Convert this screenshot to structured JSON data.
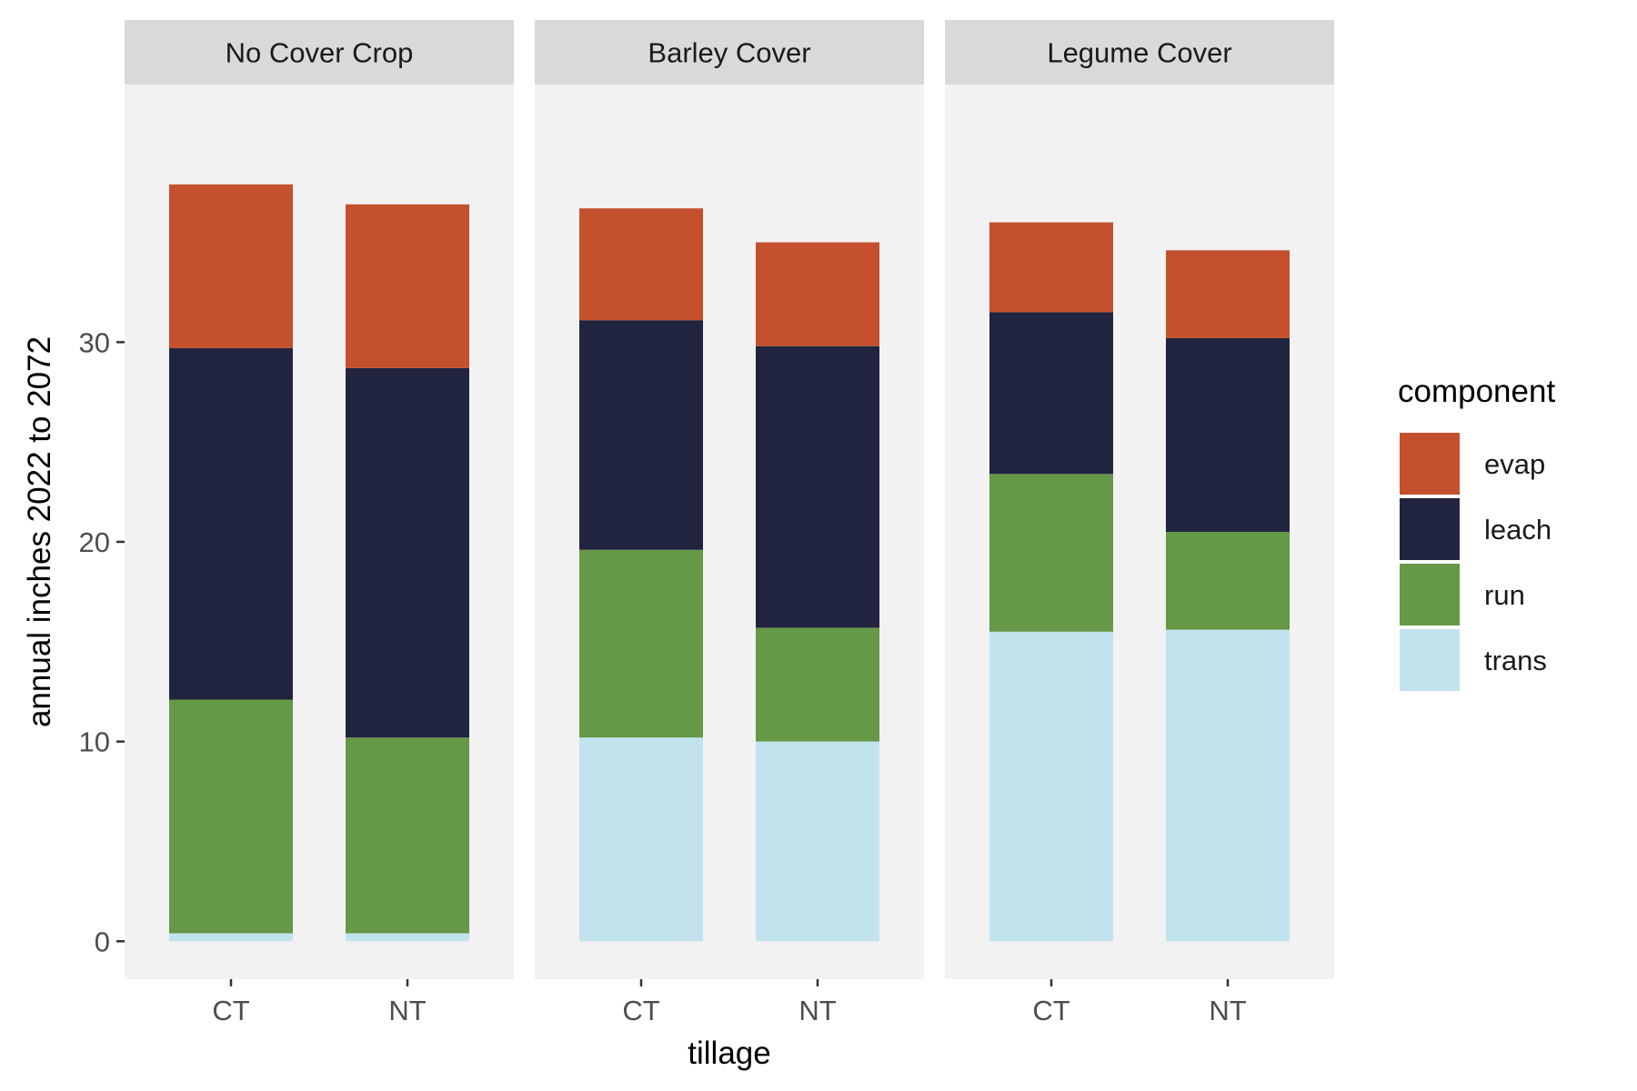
{
  "chart_data": {
    "type": "bar",
    "stacked": true,
    "faceted": true,
    "xlabel": "tillage",
    "ylabel": "annual inches 2022 to 2072",
    "ylim": [
      -1.9,
      42.9
    ],
    "yticks": [
      0,
      10,
      20,
      30
    ],
    "legend": {
      "title": "component",
      "position": "right",
      "entries": [
        "evap",
        "leach",
        "run",
        "trans"
      ]
    },
    "colors": {
      "evap": "#C4502D",
      "leach": "#20243E",
      "run": "#659847",
      "trans": "#C2E3EE",
      "panel_bg": "#F2F2F2",
      "strip_bg": "#D9D9D9"
    },
    "stack_order_bottom_to_top": [
      "trans",
      "run",
      "leach",
      "evap"
    ],
    "categories": [
      "CT",
      "NT"
    ],
    "facets": [
      {
        "label": "No Cover Crop",
        "bars": [
          {
            "category": "CT",
            "trans": 0.4,
            "run": 11.7,
            "leach": 17.6,
            "evap": 8.2
          },
          {
            "category": "NT",
            "trans": 0.4,
            "run": 9.8,
            "leach": 18.5,
            "evap": 8.2
          }
        ]
      },
      {
        "label": "Barley Cover",
        "bars": [
          {
            "category": "CT",
            "trans": 10.2,
            "run": 9.4,
            "leach": 11.5,
            "evap": 5.6
          },
          {
            "category": "NT",
            "trans": 10.0,
            "run": 5.7,
            "leach": 14.1,
            "evap": 5.2
          }
        ]
      },
      {
        "label": "Legume Cover",
        "bars": [
          {
            "category": "CT",
            "trans": 15.5,
            "run": 7.9,
            "leach": 8.1,
            "evap": 4.5
          },
          {
            "category": "NT",
            "trans": 15.6,
            "run": 4.9,
            "leach": 9.7,
            "evap": 4.4
          }
        ]
      }
    ]
  }
}
